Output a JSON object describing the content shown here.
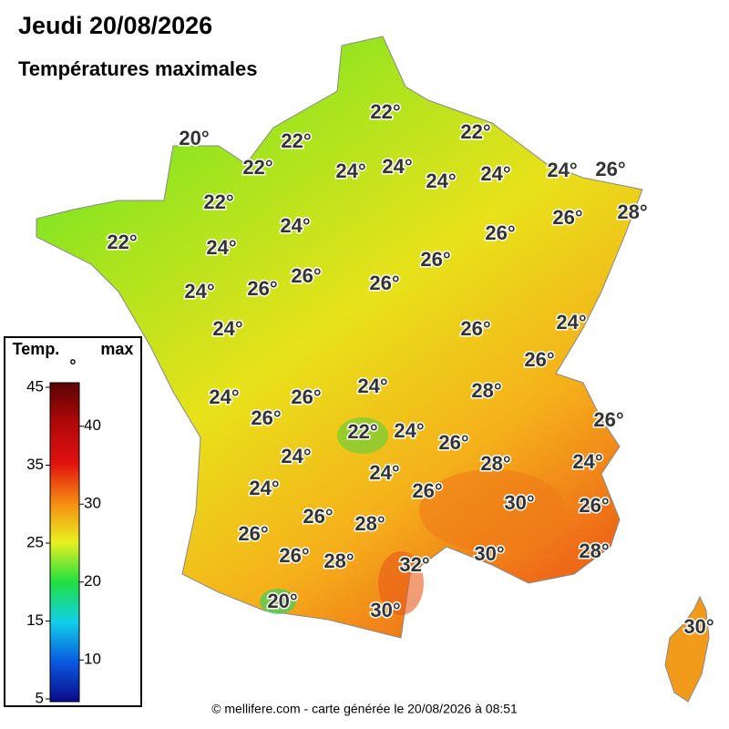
{
  "header": {
    "title": "Jeudi 20/08/2026",
    "subtitle": "Températures maximales"
  },
  "legend": {
    "title": "Temp. max °",
    "ticks": [
      45,
      40,
      35,
      30,
      25,
      20,
      15,
      10,
      5
    ]
  },
  "map": {
    "labels": [
      "22°",
      "20°",
      "22°",
      "22°",
      "22°",
      "24°",
      "24°",
      "24°",
      "24°",
      "24°",
      "26°",
      "22°",
      "24°",
      "26°",
      "28°",
      "22°",
      "24°",
      "26°",
      "26°",
      "26°",
      "24°",
      "26°",
      "26°",
      "24°",
      "24°",
      "26°",
      "26°",
      "24°",
      "26°",
      "24°",
      "28°",
      "26°",
      "26°",
      "22°",
      "24°",
      "26°",
      "24°",
      "28°",
      "24°",
      "24°",
      "24°",
      "26°",
      "30°",
      "26°",
      "26°",
      "26°",
      "28°",
      "26°",
      "28°",
      "32°",
      "30°",
      "28°",
      "20°",
      "30°",
      "30°"
    ]
  },
  "footer": "© mellifere.com - carte générée le 20/08/2026 à 08:51"
}
